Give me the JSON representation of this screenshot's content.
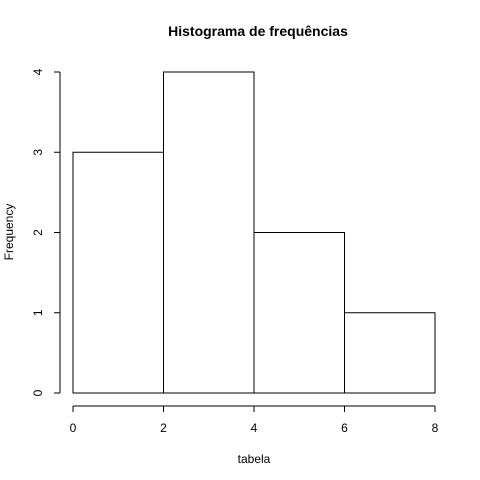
{
  "chart_data": {
    "type": "bar",
    "subtype": "histogram",
    "title": "Histograma de frequências",
    "xlabel": "tabela",
    "ylabel": "Frequency",
    "bins": [
      {
        "from": 0,
        "to": 2,
        "count": 3
      },
      {
        "from": 2,
        "to": 4,
        "count": 4
      },
      {
        "from": 4,
        "to": 6,
        "count": 2
      },
      {
        "from": 6,
        "to": 8,
        "count": 1
      }
    ],
    "xlim": [
      0,
      8
    ],
    "ylim": [
      0,
      4
    ],
    "x_ticks": [
      0,
      2,
      4,
      6,
      8
    ],
    "y_ticks": [
      0,
      1,
      2,
      3,
      4
    ],
    "grid": false,
    "bar_fill": "#ffffff",
    "bar_stroke": "#000000"
  }
}
